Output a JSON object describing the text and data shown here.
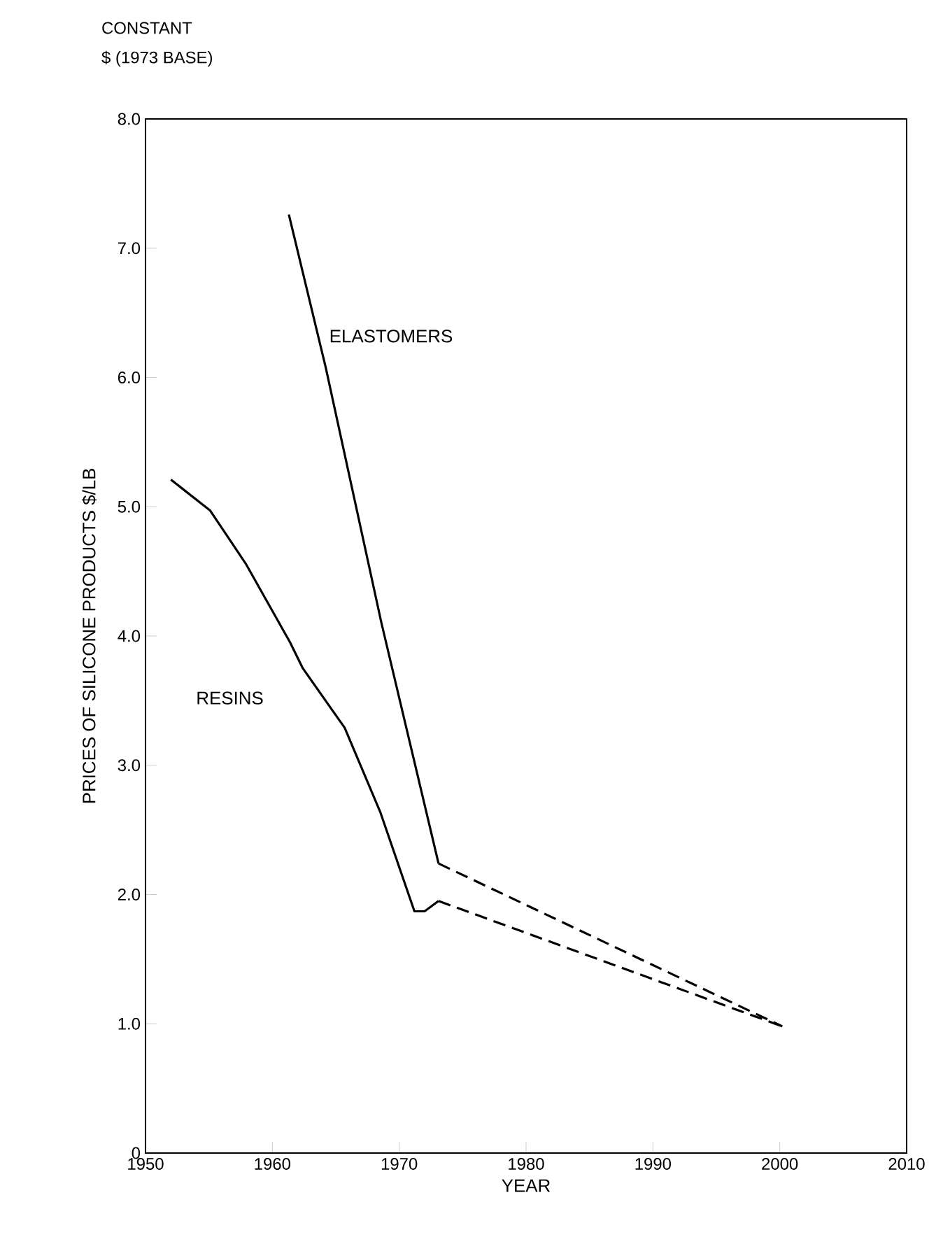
{
  "chart_data": {
    "type": "line",
    "xlabel": "YEAR",
    "ylabel": "PRICES OF SILICONE PRODUCTS $/LB",
    "annotations": [
      "CONSTANT",
      "$ (1973 BASE)"
    ],
    "xlim": [
      1950,
      2010
    ],
    "xticks": [
      1950,
      1960,
      1970,
      1980,
      1990,
      2000,
      2010
    ],
    "ylim": [
      0,
      8
    ],
    "yticks": [
      0,
      {
        "value": 1,
        "label": "1.0"
      },
      {
        "value": 2,
        "label": "2.0"
      },
      {
        "value": 3,
        "label": "3.0"
      },
      {
        "value": 4,
        "label": "4.0"
      },
      {
        "value": 5,
        "label": "5.0"
      },
      {
        "value": 6,
        "label": "6.0"
      },
      {
        "value": 7,
        "label": "7.0"
      },
      {
        "value": 8,
        "label": "8.0"
      }
    ],
    "grid": false,
    "legend": false,
    "marker": "none",
    "series": [
      {
        "name": "ELASTOMERS",
        "color": "#000000",
        "line_style": "solid",
        "x": [
          1961.3,
          1964.2,
          1968.6,
          1973.1
        ],
        "values": [
          7.26,
          6.08,
          4.1,
          2.24
        ]
      },
      {
        "name": "RESINS",
        "color": "#000000",
        "line_style": "solid",
        "x": [
          1952.0,
          1955.1,
          1957.9,
          1961.4,
          1962.4,
          1965.7,
          1968.5,
          1971.2,
          1972.0,
          1973.1
        ],
        "values": [
          5.21,
          4.97,
          4.56,
          3.95,
          3.75,
          3.29,
          2.64,
          1.87,
          1.87,
          1.95
        ]
      },
      {
        "color": "#000000",
        "line_style": "dashed",
        "x": [
          1973.1,
          2000.2
        ],
        "values": [
          2.24,
          0.98
        ]
      },
      {
        "color": "#000000",
        "line_style": "dashed",
        "x": [
          1973.1,
          2000.2
        ],
        "values": [
          1.95,
          0.98
        ]
      }
    ]
  }
}
